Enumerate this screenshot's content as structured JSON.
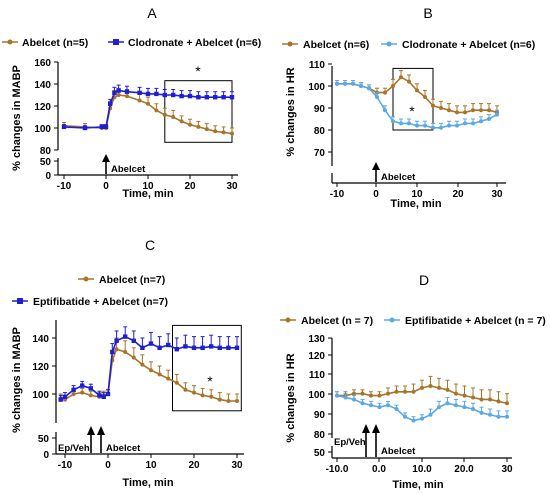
{
  "colors": {
    "abelcet": "#A8742A",
    "blue_dark": "#1E1ED2",
    "blue_light": "#5AA8E6",
    "axis": "#000000"
  },
  "chart_data": [
    {
      "type": "line",
      "panel": "A",
      "xlabel": "Time, min",
      "ylabel": "% changes in MABP",
      "xlim": [
        -11,
        31
      ],
      "xticks": [
        -10,
        0,
        10,
        20,
        30
      ],
      "yticks_upper": [
        80,
        100,
        120,
        140,
        160
      ],
      "yticks_lower": [
        0,
        50
      ],
      "ylim_upper": [
        80,
        160
      ],
      "ylim_lower": [
        0,
        50
      ],
      "legend_position": "top",
      "series": [
        {
          "name": "Abelcet (n=5)",
          "color": "#A8742A",
          "marker": "circle",
          "x": [
            -10,
            -5,
            -1,
            0,
            1,
            2,
            3,
            5,
            8,
            10,
            12,
            14,
            16,
            18,
            20,
            22,
            24,
            26,
            28,
            30
          ],
          "y": [
            102,
            101,
            100,
            100,
            118,
            128,
            130,
            129,
            125,
            122,
            116,
            112,
            110,
            106,
            103,
            101,
            99,
            97,
            96,
            95
          ],
          "err": [
            3,
            3,
            3,
            3,
            6,
            6,
            6,
            6,
            6,
            6,
            6,
            6,
            6,
            5,
            5,
            5,
            5,
            5,
            5,
            5
          ]
        },
        {
          "name": "Clodronate + Abelcet (n=6)",
          "color": "#1E1ED2",
          "marker": "square",
          "x": [
            -10,
            -5,
            -1,
            0,
            1,
            2,
            3,
            5,
            8,
            10,
            12,
            14,
            16,
            18,
            20,
            22,
            24,
            26,
            28,
            30
          ],
          "y": [
            101,
            100,
            101,
            101,
            122,
            132,
            134,
            133,
            132,
            131,
            131,
            130,
            130,
            129,
            129,
            128,
            128,
            128,
            128,
            128
          ],
          "err": [
            2,
            2,
            2,
            2,
            4,
            5,
            5,
            5,
            5,
            5,
            5,
            5,
            5,
            5,
            5,
            5,
            5,
            5,
            5,
            5
          ]
        }
      ],
      "annotations": {
        "event_label": "Abelcet",
        "event_x": 0,
        "significance": "*",
        "box_x": [
          14,
          30
        ],
        "box_y": [
          87,
          143
        ]
      }
    },
    {
      "type": "line",
      "panel": "B",
      "xlabel": "Time, min",
      "ylabel": "% changes in HR",
      "xlim": [
        -11,
        31
      ],
      "xticks": [
        -10,
        0,
        10,
        20,
        30
      ],
      "yticks_upper": [
        80,
        90,
        100,
        110
      ],
      "yticks_lower": [
        70
      ],
      "ylim_upper": [
        75,
        110
      ],
      "ylim_lower": [
        68,
        72
      ],
      "legend_position": "top",
      "series": [
        {
          "name": "Abelcet (n=6)",
          "color": "#A8742A",
          "marker": "circle",
          "x": [
            -10,
            -8,
            -6,
            -4,
            -2,
            0,
            2,
            4,
            6,
            8,
            10,
            12,
            14,
            16,
            18,
            20,
            22,
            24,
            26,
            28,
            30
          ],
          "y": [
            101,
            101,
            101,
            100,
            99,
            97,
            97,
            100,
            104,
            102,
            98,
            95,
            91,
            90,
            89,
            88,
            88,
            89,
            89,
            89,
            88
          ],
          "err": [
            1.5,
            1.5,
            1.5,
            1.5,
            1.5,
            2,
            2,
            3,
            3,
            3,
            3,
            3,
            3,
            3,
            3,
            3,
            3,
            3,
            3,
            3,
            3
          ]
        },
        {
          "name": "Clodronate + Abelcet (n=6)",
          "color": "#5AA8E6",
          "marker": "circle",
          "x": [
            -10,
            -8,
            -6,
            -4,
            -2,
            0,
            2,
            4,
            6,
            8,
            10,
            12,
            14,
            16,
            18,
            20,
            22,
            24,
            26,
            28,
            30
          ],
          "y": [
            101,
            101,
            101,
            100,
            99,
            95,
            89,
            84,
            83,
            83,
            82,
            82,
            81,
            81,
            82,
            82,
            83,
            83,
            84,
            85,
            87
          ],
          "err": [
            1.5,
            1.5,
            1.5,
            1.5,
            1.5,
            2,
            2,
            2,
            2,
            2,
            2,
            2,
            2,
            2,
            2,
            2,
            2,
            2,
            2,
            2,
            2
          ]
        }
      ],
      "annotations": {
        "event_label": "Abelcet",
        "event_x": 0,
        "significance": "*",
        "box_x": [
          4,
          14
        ],
        "box_y": [
          80,
          108
        ]
      }
    },
    {
      "type": "line",
      "panel": "C",
      "xlabel": "Time, min",
      "ylabel": "% changes in MABP",
      "xlim": [
        -12,
        31
      ],
      "xticks": [
        -10,
        0,
        10,
        20,
        30
      ],
      "yticks_upper": [
        100,
        120,
        140
      ],
      "yticks_lower": [
        0,
        50
      ],
      "ylim_upper": [
        86,
        150
      ],
      "ylim_lower": [
        0,
        50
      ],
      "legend_position": "top",
      "series": [
        {
          "name": "Abelcet (n=7)",
          "color": "#A8742A",
          "marker": "circle",
          "x": [
            -11,
            -10,
            -8,
            -6,
            -4,
            -2,
            -1,
            0,
            1,
            2,
            4,
            6,
            8,
            10,
            12,
            14,
            16,
            18,
            20,
            22,
            24,
            26,
            28,
            30
          ],
          "y": [
            97,
            96,
            100,
            101,
            99,
            98,
            99,
            100,
            124,
            132,
            130,
            126,
            121,
            117,
            114,
            111,
            108,
            103,
            101,
            99,
            98,
            96,
            95,
            95
          ],
          "err": [
            3,
            3,
            3,
            3,
            3,
            3,
            3,
            3,
            7,
            8,
            8,
            7,
            7,
            6,
            6,
            6,
            6,
            5,
            5,
            5,
            5,
            5,
            5,
            5
          ]
        },
        {
          "name": "Eptifibatide + Abelcet (n=7)",
          "color": "#1E1ED2",
          "marker": "square",
          "x": [
            -11,
            -10,
            -8,
            -6,
            -4,
            -2,
            -1,
            0,
            1,
            2,
            4,
            6,
            8,
            10,
            12,
            14,
            16,
            18,
            20,
            22,
            24,
            26,
            28,
            30
          ],
          "y": [
            96,
            98,
            103,
            106,
            104,
            99,
            98,
            100,
            130,
            138,
            141,
            138,
            133,
            136,
            133,
            135,
            132,
            134,
            133,
            133,
            134,
            133,
            133,
            133
          ],
          "err": [
            3,
            3,
            3,
            3,
            3,
            3,
            3,
            3,
            6,
            7,
            7,
            7,
            7,
            8,
            8,
            8,
            8,
            8,
            8,
            8,
            8,
            8,
            8,
            8
          ]
        }
      ],
      "annotations": {
        "event_labels": [
          "Ep/Veh",
          "Abelcet"
        ],
        "event_x": [
          -3,
          0
        ],
        "significance": "*",
        "box_x": [
          15,
          31
        ],
        "box_y": [
          88,
          149
        ]
      }
    },
    {
      "type": "line",
      "panel": "D",
      "xlabel": "Time, min",
      "ylabel": "% changes in HR",
      "xlim": [
        -11,
        31
      ],
      "xticks": [
        -10,
        0,
        10,
        20,
        30
      ],
      "xtick_labels": [
        "-10.0",
        "0.0",
        "10.0",
        "20.0",
        "30"
      ],
      "yticks_upper": [
        80,
        90,
        100,
        110,
        120,
        130
      ],
      "yticks_lower": [
        50
      ],
      "ylim_upper": [
        78,
        130
      ],
      "ylim_lower": [
        45,
        55
      ],
      "legend_position": "top",
      "series": [
        {
          "name": "Abelcet (n = 7)",
          "color": "#A8742A",
          "marker": "circle",
          "x": [
            -10,
            -8,
            -6,
            -4,
            -2,
            0,
            2,
            4,
            6,
            8,
            10,
            12,
            14,
            16,
            18,
            20,
            22,
            24,
            26,
            28,
            30
          ],
          "y": [
            100,
            100,
            101,
            101,
            100,
            100,
            101,
            102,
            102,
            102,
            104,
            105,
            104,
            103,
            101,
            100,
            99,
            98,
            98,
            97,
            96
          ],
          "err": [
            2,
            2,
            2,
            2,
            2,
            2,
            3,
            3,
            3,
            4,
            4,
            5,
            5,
            5,
            5,
            5,
            5,
            5,
            5,
            5,
            5
          ]
        },
        {
          "name": "Eptifibatide + Abelcet (n = 7)",
          "color": "#5AA8E6",
          "marker": "circle",
          "x": [
            -10,
            -8,
            -6,
            -4,
            -2,
            0,
            2,
            4,
            6,
            8,
            10,
            12,
            14,
            16,
            18,
            20,
            22,
            24,
            26,
            28,
            30
          ],
          "y": [
            100,
            99,
            98,
            96,
            95,
            94,
            95,
            93,
            89,
            87,
            88,
            90,
            94,
            96,
            95,
            94,
            93,
            91,
            90,
            89,
            89
          ],
          "err": [
            2,
            2,
            2,
            2,
            2,
            2,
            2,
            2,
            2,
            2,
            2,
            3,
            3,
            3,
            3,
            3,
            3,
            3,
            3,
            3,
            3
          ]
        }
      ],
      "annotations": {
        "event_labels": [
          "Ep/Veh",
          "Abelcet"
        ],
        "event_x": [
          -3,
          0
        ]
      }
    }
  ]
}
